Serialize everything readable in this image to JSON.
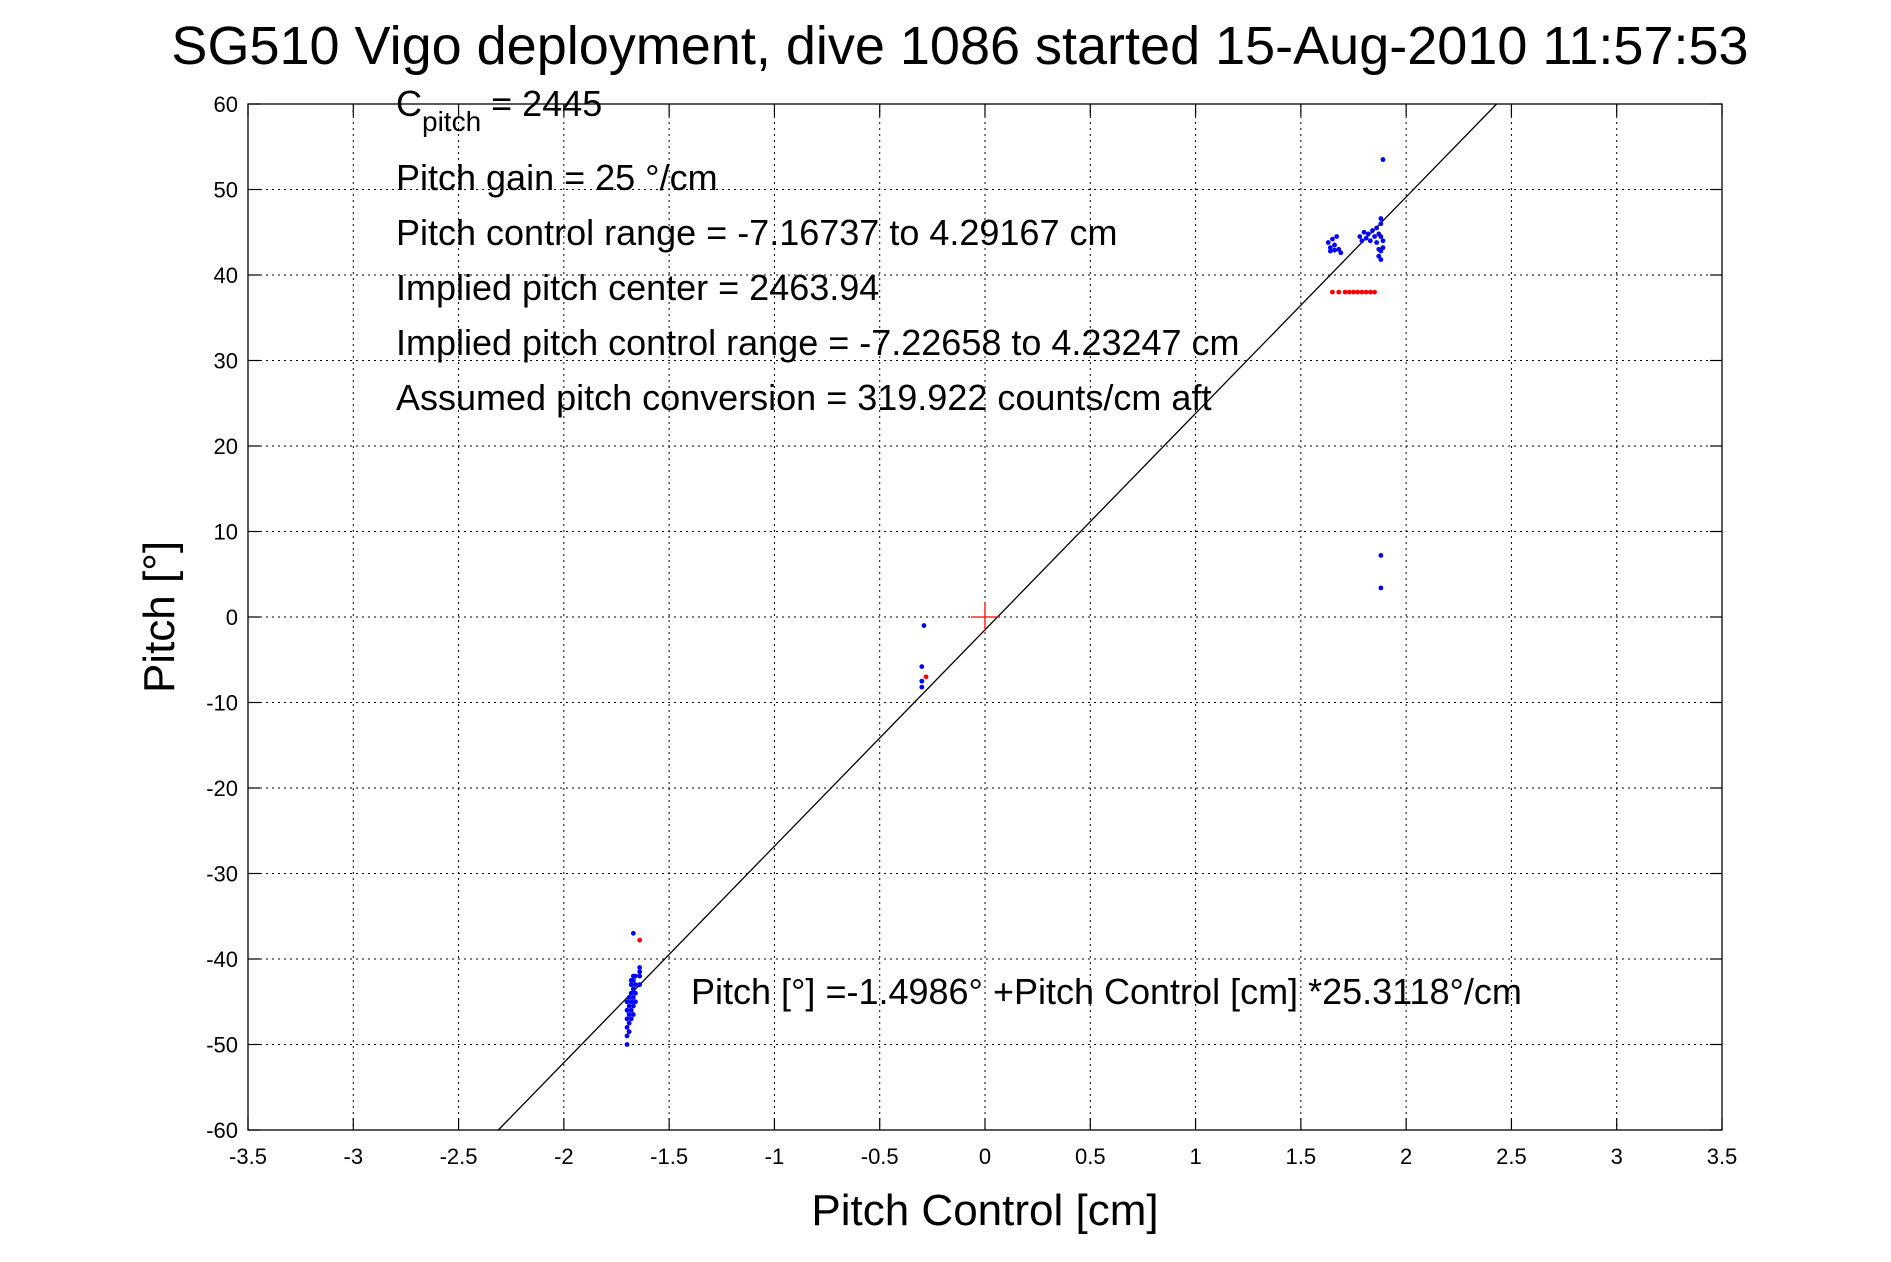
{
  "chart_data": {
    "type": "scatter",
    "title": "SG510 Vigo deployment, dive 1086 started 15-Aug-2010 11:57:53",
    "xlabel": "Pitch Control [cm]",
    "ylabel": "Pitch [°]",
    "xlim": [
      -3.5,
      3.5
    ],
    "ylim": [
      -60,
      60
    ],
    "grid": true,
    "x_ticks": [
      -3.5,
      -3,
      -2.5,
      -2,
      -1.5,
      -1,
      -0.5,
      0,
      0.5,
      1,
      1.5,
      2,
      2.5,
      3,
      3.5
    ],
    "x_tick_labels": [
      "-3.5",
      "-3",
      "-2.5",
      "-2",
      "-1.5",
      "-1",
      "-0.5",
      "0",
      "0.5",
      "1",
      "1.5",
      "2",
      "2.5",
      "3",
      "3.5"
    ],
    "y_ticks": [
      -60,
      -50,
      -40,
      -30,
      -20,
      -10,
      0,
      10,
      20,
      30,
      40,
      50,
      60
    ],
    "y_tick_labels": [
      "-60",
      "-50",
      "-40",
      "-30",
      "-20",
      "-10",
      "0",
      "10",
      "20",
      "30",
      "40",
      "50",
      "60"
    ],
    "annotations": {
      "cpitch_main": "C",
      "cpitch_sub": "pitch",
      "cpitch_value": " = 2445",
      "pitch_gain": "Pitch gain = 25 °/cm",
      "pitch_control_range": "Pitch control range = -7.16737 to 4.29167 cm",
      "implied_center": "Implied pitch center = 2463.94",
      "implied_range": "Implied pitch control range = -7.22658 to 4.23247 cm",
      "assumed_conversion": "Assumed pitch conversion = 319.922 counts/cm aft",
      "fit_equation": "Pitch [°] =-1.4986° +Pitch Control [cm] *25.3118°/cm"
    },
    "fit_line": {
      "intercept": -1.4986,
      "slope": 25.3118,
      "color": "#000000"
    },
    "center_marker": {
      "x": 0,
      "y": 0,
      "color": "#ff0000"
    },
    "series": [
      {
        "color": "#0000ff",
        "points": [
          [
            -1.7,
            -50.0
          ],
          [
            -1.7,
            -49.0
          ],
          [
            -1.7,
            -48.0
          ],
          [
            -1.7,
            -47.0
          ],
          [
            -1.7,
            -46.0
          ],
          [
            -1.7,
            -45.0
          ],
          [
            -1.69,
            -48.5
          ],
          [
            -1.69,
            -47.5
          ],
          [
            -1.69,
            -46.5
          ],
          [
            -1.69,
            -45.5
          ],
          [
            -1.69,
            -44.5
          ],
          [
            -1.68,
            -47.0
          ],
          [
            -1.68,
            -46.0
          ],
          [
            -1.68,
            -45.0
          ],
          [
            -1.68,
            -44.0
          ],
          [
            -1.68,
            -43.0
          ],
          [
            -1.68,
            -42.5
          ],
          [
            -1.67,
            -46.5
          ],
          [
            -1.67,
            -45.5
          ],
          [
            -1.67,
            -44.5
          ],
          [
            -1.67,
            -43.5
          ],
          [
            -1.67,
            -42.5
          ],
          [
            -1.67,
            -42.0
          ],
          [
            -1.66,
            -45.0
          ],
          [
            -1.66,
            -44.0
          ],
          [
            -1.66,
            -43.0
          ],
          [
            -1.66,
            -42.0
          ],
          [
            -1.64,
            -43.0
          ],
          [
            -1.64,
            -42.0
          ],
          [
            -1.64,
            -41.5
          ],
          [
            -1.64,
            -41.0
          ],
          [
            -1.67,
            -37.0
          ],
          [
            -0.29,
            -1.0
          ],
          [
            -0.3,
            -5.8
          ],
          [
            -0.3,
            -7.5
          ],
          [
            -0.3,
            -8.2
          ],
          [
            1.63,
            43.8
          ],
          [
            1.64,
            43.2
          ],
          [
            1.64,
            42.8
          ],
          [
            1.65,
            44.2
          ],
          [
            1.66,
            43.5
          ],
          [
            1.66,
            42.9
          ],
          [
            1.67,
            44.5
          ],
          [
            1.68,
            43.0
          ],
          [
            1.69,
            42.6
          ],
          [
            1.78,
            44.5
          ],
          [
            1.79,
            44.0
          ],
          [
            1.8,
            45.0
          ],
          [
            1.81,
            44.3
          ],
          [
            1.82,
            44.8
          ],
          [
            1.83,
            44.0
          ],
          [
            1.84,
            45.2
          ],
          [
            1.85,
            44.5
          ],
          [
            1.86,
            45.5
          ],
          [
            1.86,
            43.8
          ],
          [
            1.87,
            44.8
          ],
          [
            1.87,
            43.0
          ],
          [
            1.87,
            42.2
          ],
          [
            1.88,
            46.0
          ],
          [
            1.88,
            44.5
          ],
          [
            1.88,
            42.8
          ],
          [
            1.88,
            41.8
          ],
          [
            1.89,
            44.0
          ],
          [
            1.89,
            43.2
          ],
          [
            1.88,
            46.6
          ],
          [
            1.89,
            53.5
          ],
          [
            1.88,
            7.2
          ],
          [
            1.88,
            3.4
          ]
        ]
      },
      {
        "color": "#ff0000",
        "points": [
          [
            -1.64,
            -37.8
          ],
          [
            -0.28,
            -7.0
          ],
          [
            1.65,
            38.0
          ],
          [
            1.68,
            38.0
          ],
          [
            1.71,
            38.0
          ],
          [
            1.73,
            38.0
          ],
          [
            1.75,
            38.0
          ],
          [
            1.77,
            38.0
          ],
          [
            1.79,
            38.0
          ],
          [
            1.81,
            38.0
          ],
          [
            1.83,
            38.0
          ],
          [
            1.85,
            38.0
          ]
        ]
      }
    ]
  }
}
